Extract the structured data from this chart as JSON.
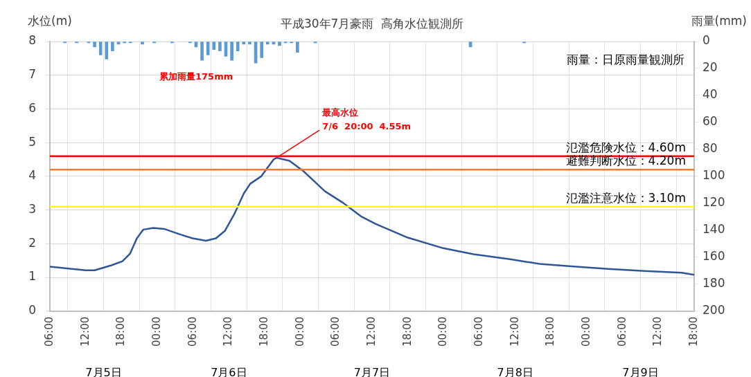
{
  "chart_data": {
    "type": "line",
    "title": "平成30年7月豪雨  高角水位観測所",
    "ylabel": "水位(m)",
    "y2label": "雨量(mm)",
    "xlim": [
      "--07-05T06:00",
      "--07-09T18:00"
    ],
    "xticks": [
      {
        "value": "--07-05T06:00",
        "label": "06:00"
      },
      {
        "value": "--07-05T12:00",
        "label": "12:00"
      },
      {
        "value": "--07-05T18:00",
        "label": "18:00"
      },
      {
        "value": "--07-06T00:00",
        "label": "00:00"
      },
      {
        "value": "--07-06T06:00",
        "label": "06:00"
      },
      {
        "value": "--07-06T12:00",
        "label": "12:00"
      },
      {
        "value": "--07-06T18:00",
        "label": "18:00"
      },
      {
        "value": "--07-07T00:00",
        "label": "00:00"
      },
      {
        "value": "--07-07T06:00",
        "label": "06:00"
      },
      {
        "value": "--07-07T12:00",
        "label": "12:00"
      },
      {
        "value": "--07-07T18:00",
        "label": "18:00"
      },
      {
        "value": "--07-08T00:00",
        "label": "00:00"
      },
      {
        "value": "--07-08T06:00",
        "label": "06:00"
      },
      {
        "value": "--07-08T12:00",
        "label": "12:00"
      },
      {
        "value": "--07-08T18:00",
        "label": "18:00"
      },
      {
        "value": "--07-09T00:00",
        "label": "00:00"
      },
      {
        "value": "--07-09T06:00",
        "label": "06:00"
      },
      {
        "value": "--07-09T12:00",
        "label": "12:00"
      },
      {
        "value": "--07-09T18:00",
        "label": "18:00"
      }
    ],
    "ylim": [
      0,
      8
    ],
    "yticks": [
      0,
      1,
      2,
      3,
      4,
      5,
      6,
      7,
      8
    ],
    "y2lim": [
      200,
      0
    ],
    "y2ticks": [
      0,
      20,
      40,
      60,
      80,
      100,
      120,
      140,
      160,
      180,
      200
    ],
    "grid": true,
    "series": [
      {
        "type": "bar",
        "axis": "y2",
        "color": "#5b9bd5",
        "x": [
          "--07-05T08:30",
          "--07-05T10:30",
          "--07-05T12:30",
          "--07-05T13:30",
          "--07-05T14:30",
          "--07-05T15:30",
          "--07-05T16:30",
          "--07-05T17:30",
          "--07-05T18:30",
          "--07-05T19:30",
          "--07-05T21:30",
          "--07-05T23:30",
          "--07-06T02:30",
          "--07-06T05:30",
          "--07-06T06:30",
          "--07-06T07:30",
          "--07-06T08:30",
          "--07-06T09:30",
          "--07-06T10:30",
          "--07-06T11:30",
          "--07-06T12:30",
          "--07-06T13:30",
          "--07-06T14:30",
          "--07-06T15:30",
          "--07-06T16:30",
          "--07-06T17:30",
          "--07-06T18:30",
          "--07-06T19:30",
          "--07-06T20:30",
          "--07-06T21:30",
          "--07-06T22:30",
          "--07-06T23:30",
          "--07-07T02:30",
          "--07-08T04:30",
          "--07-08T13:30"
        ],
        "values": [
          1,
          1,
          1,
          4,
          10,
          13,
          7,
          2,
          1,
          1,
          2,
          1,
          1,
          1,
          4,
          14,
          10,
          6,
          7,
          11,
          14,
          7,
          2,
          2,
          16,
          12,
          2,
          2,
          3,
          1,
          1,
          8,
          1,
          4,
          1
        ]
      },
      {
        "color": "#2f5597",
        "marker": "none",
        "line_style": "solid",
        "x": [
          "--07-05T06:00",
          "--07-05T12:00",
          "--07-05T13:30",
          "--07-05T16:20",
          "--07-05T18:10",
          "--07-05T19:25",
          "--07-05T20:35",
          "--07-05T21:40",
          "--07-05T23:20",
          "--07-06T01:10",
          "--07-06T03:55",
          "--07-06T05:55",
          "--07-06T08:10",
          "--07-06T09:50",
          "--07-06T11:20",
          "--07-06T12:55",
          "--07-06T14:30",
          "--07-06T15:35",
          "--07-06T17:25",
          "--07-06T19:30",
          "--07-06T20:00",
          "--07-06T22:10",
          "--07-07T00:35",
          "--07-07T04:05",
          "--07-07T07:10",
          "--07-07T10:10",
          "--07-07T12:35",
          "--07-07T18:00",
          "--07-07T23:40",
          "--07-08T05:00",
          "--07-08T11:10",
          "--07-08T16:05",
          "--07-08T21:25",
          "--07-09T03:35",
          "--07-09T09:40",
          "--07-09T15:55",
          "--07-09T18:00"
        ],
        "values": [
          1.32,
          1.21,
          1.21,
          1.36,
          1.48,
          1.7,
          2.16,
          2.42,
          2.47,
          2.44,
          2.27,
          2.16,
          2.09,
          2.16,
          2.38,
          2.88,
          3.49,
          3.78,
          4.0,
          4.5,
          4.55,
          4.46,
          4.14,
          3.56,
          3.21,
          2.81,
          2.59,
          2.18,
          1.88,
          1.69,
          1.54,
          1.4,
          1.33,
          1.25,
          1.19,
          1.14,
          1.08
        ]
      }
    ],
    "ref_lines": [
      {
        "axis": "y",
        "value": 4.6,
        "label": "氾濫危険水位：4.60m",
        "color": "#ff0000"
      },
      {
        "axis": "y",
        "value": 4.2,
        "label": "避難判断水位：4.20m",
        "color": "#ed7d31"
      },
      {
        "axis": "y",
        "value": 3.1,
        "label": "氾濫注意水位：3.10m",
        "color": "#ffff00"
      }
    ],
    "annotations": [
      "累加雨量175mm",
      {
        "text": "最高水位\n7/6  20:00  4.55m",
        "x": "--07-06T20:00",
        "y": 4.55
      },
      "雨量：日原雨量観測所",
      "7月5日",
      "7月6日",
      "7月7日",
      "7月8日",
      "7月9日"
    ]
  }
}
